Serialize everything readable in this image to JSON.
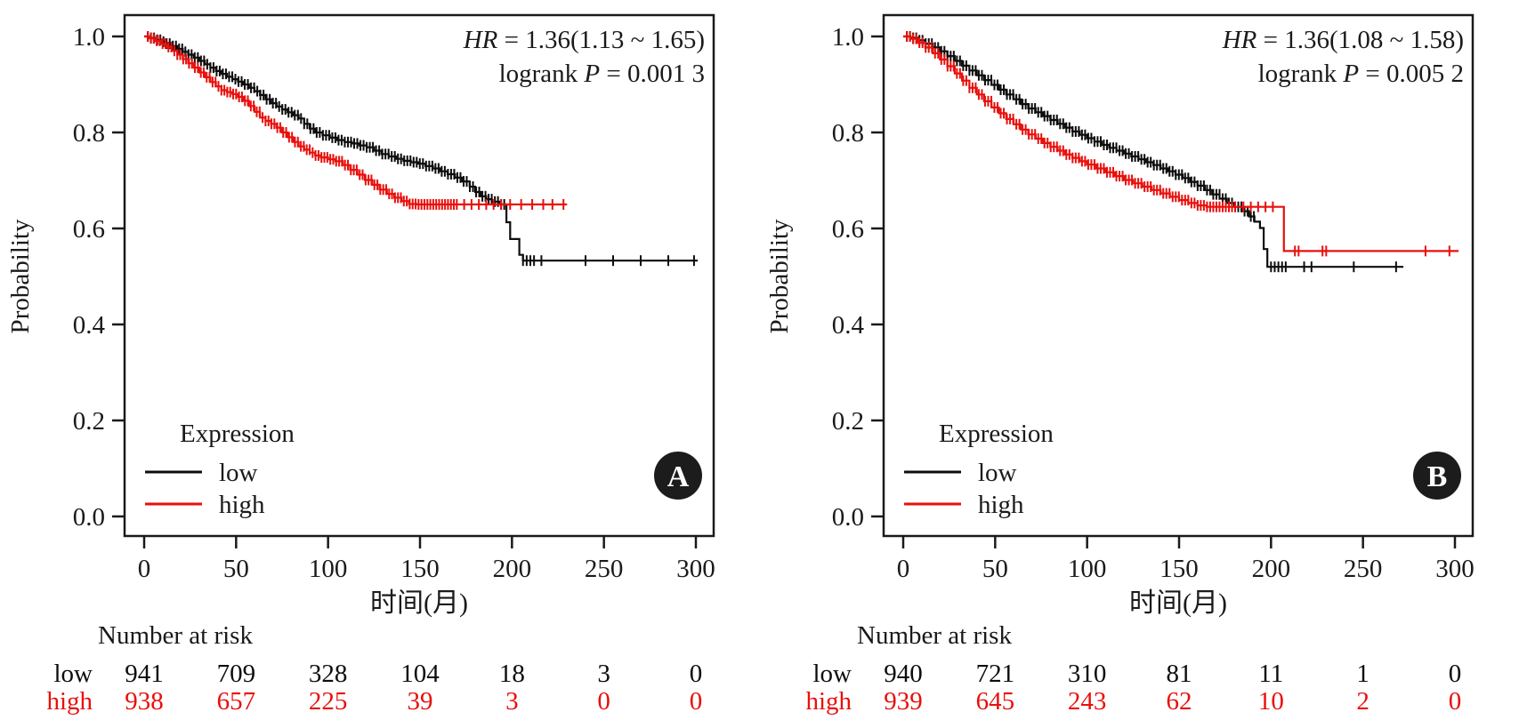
{
  "figure": {
    "background": "#ffffff",
    "y_label": "Probability",
    "x_label": "时间(月)",
    "risk_header": "Number at risk",
    "legend_title": "Expression",
    "colors": {
      "low": "#0d0d0d",
      "high": "#e8100c"
    }
  },
  "chart_data": [
    {
      "type": "line",
      "subtype": "kaplan-meier",
      "panel_label": "A",
      "stats": {
        "hr_italic": "HR",
        "hr_rest": " = 1.36(1.13 ~ 1.65)",
        "logrank_prefix": "logrank ",
        "p_italic": "P",
        "p_rest": " = 0.001 3"
      },
      "xlabel": "时间(月)",
      "ylabel": "Probability",
      "xlim": [
        0,
        300
      ],
      "ylim": [
        0.0,
        1.0
      ],
      "x_ticks": [
        0,
        50,
        100,
        150,
        200,
        250,
        300
      ],
      "y_ticks": [
        1.0,
        0.8,
        0.6,
        0.4,
        0.2,
        0.0
      ],
      "legend": {
        "title": "Expression",
        "entries": [
          "low",
          "high"
        ]
      },
      "series": [
        {
          "name": "low",
          "color": "#0d0d0d",
          "steps": [
            [
              0,
              1.0
            ],
            [
              3,
              0.997
            ],
            [
              6,
              0.993
            ],
            [
              9,
              0.989
            ],
            [
              12,
              0.985
            ],
            [
              15,
              0.98
            ],
            [
              18,
              0.974
            ],
            [
              21,
              0.968
            ],
            [
              24,
              0.962
            ],
            [
              27,
              0.956
            ],
            [
              30,
              0.949
            ],
            [
              33,
              0.942
            ],
            [
              36,
              0.935
            ],
            [
              39,
              0.928
            ],
            [
              42,
              0.922
            ],
            [
              45,
              0.916
            ],
            [
              48,
              0.911
            ],
            [
              51,
              0.906
            ],
            [
              54,
              0.9
            ],
            [
              57,
              0.893
            ],
            [
              60,
              0.886
            ],
            [
              63,
              0.878
            ],
            [
              66,
              0.869
            ],
            [
              69,
              0.861
            ],
            [
              72,
              0.854
            ],
            [
              75,
              0.848
            ],
            [
              78,
              0.842
            ],
            [
              81,
              0.836
            ],
            [
              84,
              0.829
            ],
            [
              87,
              0.818
            ],
            [
              90,
              0.808
            ],
            [
              93,
              0.8
            ],
            [
              97,
              0.794
            ],
            [
              101,
              0.789
            ],
            [
              105,
              0.784
            ],
            [
              109,
              0.78
            ],
            [
              113,
              0.777
            ],
            [
              117,
              0.773
            ],
            [
              121,
              0.769
            ],
            [
              125,
              0.762
            ],
            [
              129,
              0.755
            ],
            [
              133,
              0.75
            ],
            [
              137,
              0.745
            ],
            [
              141,
              0.741
            ],
            [
              145,
              0.738
            ],
            [
              149,
              0.735
            ],
            [
              153,
              0.73
            ],
            [
              157,
              0.725
            ],
            [
              161,
              0.719
            ],
            [
              165,
              0.713
            ],
            [
              169,
              0.706
            ],
            [
              173,
              0.698
            ],
            [
              177,
              0.687
            ],
            [
              180,
              0.676
            ],
            [
              183,
              0.667
            ],
            [
              186,
              0.661
            ],
            [
              189,
              0.656
            ],
            [
              193,
              0.65
            ],
            [
              197,
              0.613
            ],
            [
              199,
              0.578
            ],
            [
              204,
              0.545
            ],
            [
              206,
              0.533
            ],
            [
              301,
              0.533
            ]
          ],
          "censor_dense": {
            "from": 2,
            "to": 196,
            "step": 1.7
          },
          "censor_sparse": [
            206,
            208,
            210,
            212,
            216,
            240,
            255,
            270,
            285,
            299
          ]
        },
        {
          "name": "high",
          "color": "#e8100c",
          "steps": [
            [
              0,
              1.0
            ],
            [
              3,
              0.996
            ],
            [
              6,
              0.991
            ],
            [
              9,
              0.985
            ],
            [
              12,
              0.978
            ],
            [
              15,
              0.97
            ],
            [
              18,
              0.962
            ],
            [
              21,
              0.953
            ],
            [
              24,
              0.944
            ],
            [
              27,
              0.935
            ],
            [
              30,
              0.925
            ],
            [
              33,
              0.915
            ],
            [
              36,
              0.905
            ],
            [
              39,
              0.896
            ],
            [
              42,
              0.888
            ],
            [
              45,
              0.884
            ],
            [
              48,
              0.88
            ],
            [
              51,
              0.874
            ],
            [
              54,
              0.866
            ],
            [
              57,
              0.855
            ],
            [
              60,
              0.843
            ],
            [
              63,
              0.831
            ],
            [
              66,
              0.824
            ],
            [
              69,
              0.818
            ],
            [
              72,
              0.81
            ],
            [
              75,
              0.8
            ],
            [
              78,
              0.79
            ],
            [
              81,
              0.78
            ],
            [
              84,
              0.771
            ],
            [
              87,
              0.764
            ],
            [
              90,
              0.758
            ],
            [
              93,
              0.752
            ],
            [
              96,
              0.748
            ],
            [
              100,
              0.744
            ],
            [
              104,
              0.74
            ],
            [
              108,
              0.732
            ],
            [
              112,
              0.722
            ],
            [
              116,
              0.712
            ],
            [
              120,
              0.701
            ],
            [
              124,
              0.691
            ],
            [
              128,
              0.681
            ],
            [
              132,
              0.672
            ],
            [
              136,
              0.664
            ],
            [
              140,
              0.657
            ],
            [
              144,
              0.651
            ],
            [
              148,
              0.65
            ],
            [
              230,
              0.65
            ]
          ],
          "censor_dense": {
            "from": 2,
            "to": 170,
            "step": 1.6
          },
          "censor_sparse": [
            174,
            178,
            182,
            186,
            190,
            194,
            199,
            205,
            211,
            217,
            222,
            228
          ]
        }
      ],
      "number_at_risk": [
        {
          "name": "low",
          "color": "#0d0d0d",
          "values": [
            941,
            709,
            328,
            104,
            18,
            3,
            0
          ]
        },
        {
          "name": "high",
          "color": "#e8100c",
          "values": [
            938,
            657,
            225,
            39,
            3,
            0,
            0
          ]
        }
      ]
    },
    {
      "type": "line",
      "subtype": "kaplan-meier",
      "panel_label": "B",
      "stats": {
        "hr_italic": "HR",
        "hr_rest": " = 1.36(1.08 ~ 1.58)",
        "logrank_prefix": "logrank ",
        "p_italic": "P",
        "p_rest": " = 0.005 2"
      },
      "xlabel": "时间(月)",
      "ylabel": "Probability",
      "xlim": [
        0,
        300
      ],
      "ylim": [
        0.0,
        1.0
      ],
      "x_ticks": [
        0,
        50,
        100,
        150,
        200,
        250,
        300
      ],
      "y_ticks": [
        1.0,
        0.8,
        0.6,
        0.4,
        0.2,
        0.0
      ],
      "legend": {
        "title": "Expression",
        "entries": [
          "low",
          "high"
        ]
      },
      "series": [
        {
          "name": "low",
          "color": "#0d0d0d",
          "steps": [
            [
              0,
              1.0
            ],
            [
              4,
              0.997
            ],
            [
              8,
              0.992
            ],
            [
              12,
              0.985
            ],
            [
              16,
              0.977
            ],
            [
              20,
              0.969
            ],
            [
              24,
              0.959
            ],
            [
              28,
              0.949
            ],
            [
              32,
              0.939
            ],
            [
              36,
              0.929
            ],
            [
              40,
              0.919
            ],
            [
              44,
              0.909
            ],
            [
              48,
              0.899
            ],
            [
              52,
              0.889
            ],
            [
              56,
              0.879
            ],
            [
              60,
              0.869
            ],
            [
              64,
              0.859
            ],
            [
              68,
              0.85
            ],
            [
              72,
              0.842
            ],
            [
              76,
              0.834
            ],
            [
              80,
              0.826
            ],
            [
              84,
              0.818
            ],
            [
              88,
              0.81
            ],
            [
              92,
              0.802
            ],
            [
              96,
              0.795
            ],
            [
              100,
              0.788
            ],
            [
              104,
              0.781
            ],
            [
              108,
              0.774
            ],
            [
              112,
              0.768
            ],
            [
              116,
              0.762
            ],
            [
              120,
              0.756
            ],
            [
              124,
              0.75
            ],
            [
              128,
              0.744
            ],
            [
              132,
              0.738
            ],
            [
              136,
              0.732
            ],
            [
              140,
              0.725
            ],
            [
              144,
              0.719
            ],
            [
              148,
              0.712
            ],
            [
              152,
              0.705
            ],
            [
              156,
              0.697
            ],
            [
              160,
              0.689
            ],
            [
              164,
              0.68
            ],
            [
              168,
              0.671
            ],
            [
              172,
              0.662
            ],
            [
              176,
              0.653
            ],
            [
              180,
              0.645
            ],
            [
              184,
              0.636
            ],
            [
              188,
              0.625
            ],
            [
              191,
              0.614
            ],
            [
              194,
              0.601
            ],
            [
              196,
              0.557
            ],
            [
              198,
              0.52
            ],
            [
              272,
              0.52
            ]
          ],
          "censor_dense": {
            "from": 2,
            "to": 191,
            "step": 1.7
          },
          "censor_sparse": [
            200,
            202,
            204,
            206,
            208,
            218,
            222,
            245,
            268
          ]
        },
        {
          "name": "high",
          "color": "#e8100c",
          "steps": [
            [
              0,
              1.0
            ],
            [
              4,
              0.995
            ],
            [
              8,
              0.987
            ],
            [
              12,
              0.977
            ],
            [
              16,
              0.965
            ],
            [
              20,
              0.952
            ],
            [
              24,
              0.938
            ],
            [
              28,
              0.923
            ],
            [
              32,
              0.908
            ],
            [
              36,
              0.893
            ],
            [
              40,
              0.879
            ],
            [
              44,
              0.865
            ],
            [
              48,
              0.852
            ],
            [
              52,
              0.84
            ],
            [
              56,
              0.828
            ],
            [
              60,
              0.817
            ],
            [
              64,
              0.806
            ],
            [
              68,
              0.796
            ],
            [
              72,
              0.787
            ],
            [
              76,
              0.778
            ],
            [
              80,
              0.77
            ],
            [
              84,
              0.762
            ],
            [
              88,
              0.754
            ],
            [
              92,
              0.747
            ],
            [
              96,
              0.74
            ],
            [
              100,
              0.733
            ],
            [
              105,
              0.725
            ],
            [
              110,
              0.717
            ],
            [
              115,
              0.709
            ],
            [
              120,
              0.701
            ],
            [
              125,
              0.694
            ],
            [
              130,
              0.687
            ],
            [
              135,
              0.68
            ],
            [
              140,
              0.673
            ],
            [
              145,
              0.666
            ],
            [
              150,
              0.659
            ],
            [
              155,
              0.653
            ],
            [
              160,
              0.648
            ],
            [
              165,
              0.645
            ],
            [
              205,
              0.645
            ],
            [
              207,
              0.553
            ],
            [
              302,
              0.553
            ]
          ],
          "censor_dense": {
            "from": 2,
            "to": 181,
            "step": 1.7
          },
          "censor_sparse": [
            185,
            189,
            193,
            197,
            201,
            213,
            215,
            228,
            230,
            284,
            297
          ]
        }
      ],
      "number_at_risk": [
        {
          "name": "low",
          "color": "#0d0d0d",
          "values": [
            940,
            721,
            310,
            81,
            11,
            1,
            0
          ]
        },
        {
          "name": "high",
          "color": "#e8100c",
          "values": [
            939,
            645,
            243,
            62,
            10,
            2,
            0
          ]
        }
      ]
    }
  ]
}
